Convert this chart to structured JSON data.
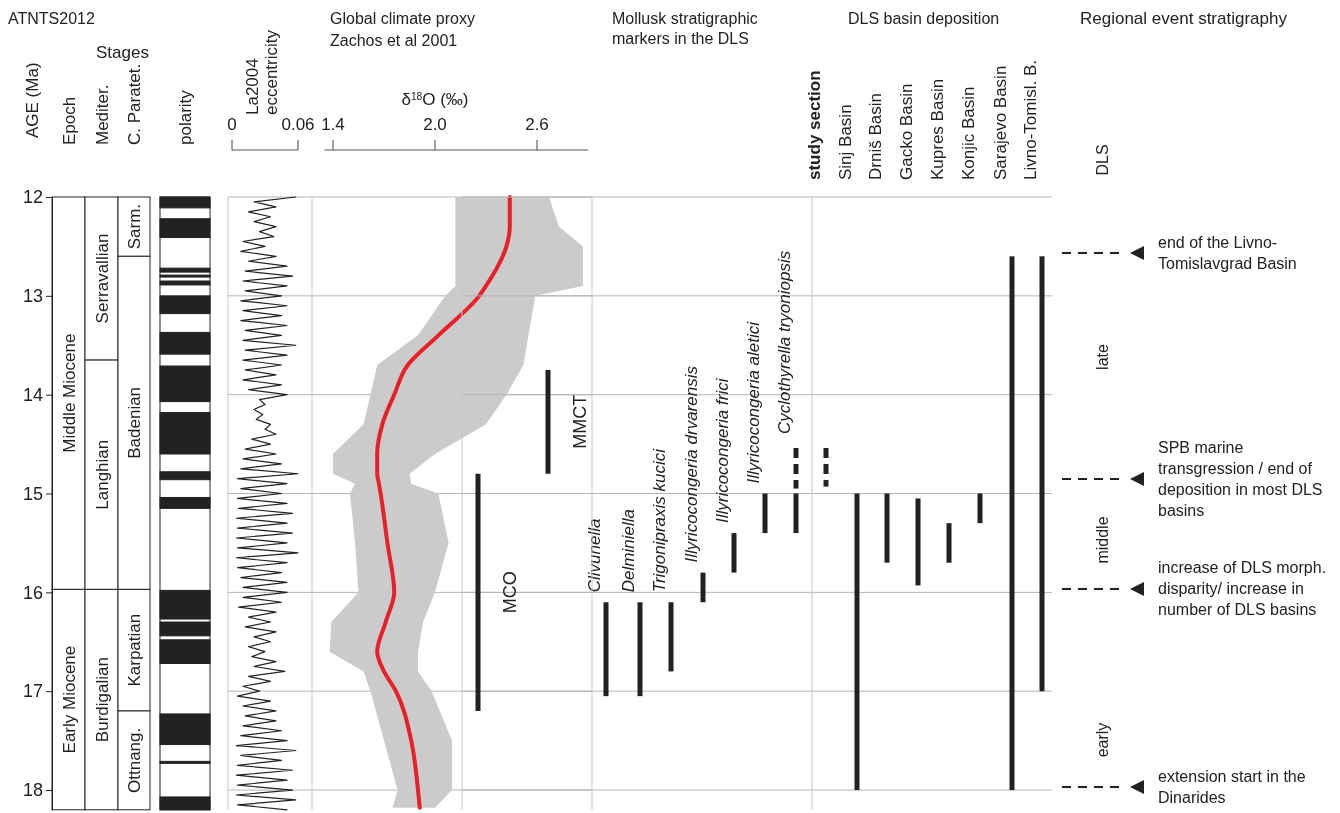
{
  "chart_data": [
    {
      "type": "bar",
      "title": "ATNTS2012",
      "ylabel": "AGE (Ma)",
      "annotations": [
        "Stages"
      ],
      "categories": [
        "Epoch",
        "Mediter.",
        "C. Paratet.",
        "polarity"
      ],
      "ylim": [
        18.2,
        12
      ],
      "yticks": [
        12,
        13,
        14,
        15,
        16,
        17,
        18
      ],
      "series": [
        {
          "color": "#ffffff",
          "base": [
            12,
            12,
            12,
            null
          ],
          "values": [
            3.97,
            1.65,
            0.6,
            null
          ],
          "value_labels": [
            "Middle Miocene",
            "Serravallian",
            "Sarm.",
            null
          ]
        },
        {
          "color": "#ffffff",
          "base": [
            15.97,
            13.65,
            12.6,
            null
          ],
          "values": [
            2.23,
            2.32,
            3.37,
            null
          ],
          "value_labels": [
            "Early Miocene",
            "Langhian",
            "Badenian",
            null
          ]
        },
        {
          "color": "#ffffff",
          "base": [
            null,
            15.97,
            15.97,
            null
          ],
          "values": [
            null,
            2.23,
            1.23,
            null
          ],
          "value_labels": [
            null,
            "Burdigalian",
            "Karpatian",
            null
          ]
        },
        {
          "color": "#ffffff",
          "base": [
            null,
            null,
            17.2,
            null
          ],
          "values": [
            null,
            null,
            1.0,
            null
          ],
          "value_labels": [
            null,
            null,
            "Ottnang.",
            null
          ]
        },
        {
          "color": "#222222",
          "base": [
            null,
            null,
            null,
            12.0
          ],
          "values": [
            null,
            null,
            null,
            0.11
          ]
        },
        {
          "color": "#222222",
          "base": [
            null,
            null,
            null,
            12.22
          ],
          "values": [
            null,
            null,
            null,
            0.19
          ]
        },
        {
          "color": "#222222",
          "base": [
            null,
            null,
            null,
            12.72
          ],
          "values": [
            null,
            null,
            null,
            0.04
          ]
        },
        {
          "color": "#222222",
          "base": [
            null,
            null,
            null,
            12.79
          ],
          "values": [
            null,
            null,
            null,
            0.02
          ]
        },
        {
          "color": "#222222",
          "base": [
            null,
            null,
            null,
            12.85
          ],
          "values": [
            null,
            null,
            null,
            0.04
          ]
        },
        {
          "color": "#222222",
          "base": [
            null,
            null,
            null,
            13.0
          ],
          "values": [
            null,
            null,
            null,
            0.18
          ]
        },
        {
          "color": "#222222",
          "base": [
            null,
            null,
            null,
            13.37
          ],
          "values": [
            null,
            null,
            null,
            0.22
          ]
        },
        {
          "color": "#222222",
          "base": [
            null,
            null,
            null,
            13.71
          ],
          "values": [
            null,
            null,
            null,
            0.36
          ]
        },
        {
          "color": "#222222",
          "base": [
            null,
            null,
            null,
            14.18
          ],
          "values": [
            null,
            null,
            null,
            0.42
          ]
        },
        {
          "color": "#222222",
          "base": [
            null,
            null,
            null,
            14.78
          ],
          "values": [
            null,
            null,
            null,
            0.08
          ]
        },
        {
          "color": "#222222",
          "base": [
            null,
            null,
            null,
            15.04
          ],
          "values": [
            null,
            null,
            null,
            0.11
          ]
        },
        {
          "color": "#222222",
          "base": [
            null,
            null,
            null,
            15.98
          ],
          "values": [
            null,
            null,
            null,
            0.29
          ]
        },
        {
          "color": "#222222",
          "base": [
            null,
            null,
            null,
            16.3
          ],
          "values": [
            null,
            null,
            null,
            0.14
          ]
        },
        {
          "color": "#222222",
          "base": [
            null,
            null,
            null,
            16.48
          ],
          "values": [
            null,
            null,
            null,
            0.24
          ]
        },
        {
          "color": "#222222",
          "base": [
            null,
            null,
            null,
            17.23
          ],
          "values": [
            null,
            null,
            null,
            0.31
          ]
        },
        {
          "color": "#222222",
          "base": [
            null,
            null,
            null,
            17.71
          ],
          "values": [
            null,
            null,
            null,
            0.02
          ]
        },
        {
          "color": "#222222",
          "base": [
            null,
            null,
            null,
            18.07
          ],
          "values": [
            null,
            null,
            null,
            0.13
          ]
        }
      ]
    },
    {
      "type": "line",
      "title": "La2004 eccentricity",
      "orientation": "horizontal",
      "color": "#222222",
      "xlim": [
        0,
        0.06
      ],
      "xticks": [
        0,
        0.06
      ],
      "ylim": [
        18.2,
        12
      ],
      "yticks": [
        12,
        13,
        14,
        15,
        16,
        17,
        18
      ],
      "grid": "y",
      "tick_labels": "x",
      "x": [
        12,
        12.05,
        12.1,
        12.15,
        12.2,
        12.25,
        12.3,
        12.35,
        12.4,
        12.45,
        12.5,
        12.55,
        12.6,
        12.65,
        12.7,
        12.75,
        12.8,
        12.85,
        12.9,
        12.95,
        13,
        13.05,
        13.1,
        13.15,
        13.2,
        13.25,
        13.3,
        13.35,
        13.4,
        13.45,
        13.5,
        13.55,
        13.6,
        13.65,
        13.7,
        13.75,
        13.8,
        13.85,
        13.9,
        13.95,
        14,
        14.05,
        14.1,
        14.15,
        14.2,
        14.25,
        14.3,
        14.35,
        14.4,
        14.45,
        14.5,
        14.55,
        14.6,
        14.65,
        14.7,
        14.75,
        14.8,
        14.85,
        14.9,
        14.95,
        15,
        15.05,
        15.1,
        15.15,
        15.2,
        15.25,
        15.3,
        15.35,
        15.4,
        15.45,
        15.5,
        15.55,
        15.6,
        15.65,
        15.7,
        15.75,
        15.8,
        15.85,
        15.9,
        15.95,
        16,
        16.05,
        16.1,
        16.15,
        16.2,
        16.25,
        16.3,
        16.35,
        16.4,
        16.45,
        16.5,
        16.55,
        16.6,
        16.65,
        16.7,
        16.75,
        16.8,
        16.85,
        16.9,
        16.95,
        17,
        17.05,
        17.1,
        17.15,
        17.2,
        17.25,
        17.3,
        17.35,
        17.4,
        17.45,
        17.5,
        17.55,
        17.6,
        17.65,
        17.7,
        17.75,
        17.8,
        17.85,
        17.9,
        17.95,
        18,
        18.05,
        18.1,
        18.15,
        18.2
      ],
      "values": [
        0.058,
        0.02,
        0.04,
        0.015,
        0.035,
        0.02,
        0.04,
        0.025,
        0.038,
        0.01,
        0.03,
        0.008,
        0.04,
        0.015,
        0.05,
        0.012,
        0.055,
        0.01,
        0.05,
        0.012,
        0.045,
        0.008,
        0.05,
        0.01,
        0.045,
        0.008,
        0.05,
        0.012,
        0.045,
        0.01,
        0.058,
        0.012,
        0.05,
        0.01,
        0.045,
        0.012,
        0.04,
        0.01,
        0.045,
        0.015,
        0.05,
        0.025,
        0.03,
        0.02,
        0.028,
        0.022,
        0.035,
        0.03,
        0.04,
        0.018,
        0.035,
        0.012,
        0.04,
        0.01,
        0.045,
        0.008,
        0.06,
        0.005,
        0.05,
        0.008,
        0.045,
        0.005,
        0.05,
        0.006,
        0.055,
        0.004,
        0.05,
        0.005,
        0.055,
        0.004,
        0.05,
        0.005,
        0.06,
        0.004,
        0.05,
        0.005,
        0.045,
        0.008,
        0.05,
        0.01,
        0.05,
        0.01,
        0.045,
        0.006,
        0.04,
        0.015,
        0.035,
        0.012,
        0.04,
        0.02,
        0.035,
        0.015,
        0.03,
        0.018,
        0.04,
        0.02,
        0.048,
        0.015,
        0.035,
        0.01,
        0.025,
        0.005,
        0.035,
        0.01,
        0.04,
        0.012,
        0.04,
        0.01,
        0.045,
        0.008,
        0.05,
        0.004,
        0.058,
        0.008,
        0.045,
        0.005,
        0.055,
        0.004,
        0.05,
        0.005,
        0.055,
        0.004,
        0.058,
        0.005,
        0.05
      ]
    },
    {
      "type": "line",
      "title": "Global climate proxy",
      "subtitle": "Zachos et al 2001",
      "xlabel": "δ$^{18}$O (‰)",
      "orientation": "horizontal",
      "xlim": [
        1.35,
        2.9
      ],
      "xticks": [
        1.4,
        {
          "value": 2,
          "label": "2.0"
        },
        2.6
      ],
      "ylim": [
        18.2,
        12
      ],
      "yticks": [
        12,
        13,
        14,
        15,
        16,
        17,
        18
      ],
      "grid": "y",
      "tick_labels": "x",
      "series": [
        {
          "color": "#e8202a",
          "x": [
            12,
            12.3,
            12.5,
            12.9,
            13,
            13.4,
            13.7,
            14,
            14.3,
            14.6,
            14.8,
            14.9,
            15,
            15.5,
            16,
            16.3,
            16.6,
            16.8,
            17,
            17.5,
            18,
            18.18
          ],
          "values": [
            2.44,
            2.44,
            2.42,
            2.3,
            2.26,
            2.02,
            1.84,
            1.76,
            1.69,
            1.66,
            1.66,
            1.67,
            1.68,
            1.72,
            1.76,
            1.71,
            1.66,
            1.7,
            1.77,
            1.86,
            1.9,
            1.91
          ],
          "lower": [
            2.12,
            2.12,
            2.12,
            2.12,
            2.06,
            1.9,
            1.66,
            1.62,
            1.58,
            1.4,
            1.4,
            1.53,
            1.5,
            1.53,
            1.55,
            1.39,
            1.38,
            1.58,
            1.62,
            1.7,
            1.78,
            1.75
          ],
          "upper": [
            2.67,
            2.73,
            2.87,
            2.87,
            2.59,
            2.55,
            2.52,
            2.42,
            2.3,
            2.0,
            1.85,
            1.86,
            2.02,
            2.08,
            2.0,
            1.93,
            1.9,
            1.9,
            1.98,
            2.1,
            2.1,
            2.0
          ]
        }
      ]
    },
    {
      "type": "bar",
      "categories": [
        "MCO",
        "MMCT"
      ],
      "ylim": [
        18.2,
        12
      ],
      "yticks": [
        12,
        13,
        14,
        15,
        16,
        17,
        18
      ],
      "grid": "y",
      "tick_labels": "x",
      "series": [
        {
          "color": "#222222",
          "base": [
            14.8,
            13.75
          ],
          "values": [
            2.4,
            1.05
          ]
        }
      ]
    },
    {
      "type": "bar",
      "title": "Mollusk stratigraphic markers in the DLS",
      "categories": [
        "Clivunella",
        "Delminiella",
        "Trigonipraxis kucici",
        "Illyricocongeria drvarensis",
        "Illyricocongeria frici",
        "Illyricocongeria aletici",
        "Cyclothyrella tryoniopsis"
      ],
      "ylim": [
        18.2,
        12
      ],
      "yticks": [
        12,
        13,
        14,
        15,
        16,
        17,
        18
      ],
      "grid": "y",
      "tick_labels": "x",
      "series": [
        {
          "color": "#222222",
          "base": [
            16.1,
            16.1,
            16.1,
            15.8,
            15.4,
            15.0,
            15.0
          ],
          "values": [
            0.95,
            0.95,
            0.7,
            0.3,
            0.4,
            0.4,
            0.4
          ]
        },
        {
          "color": "#222222",
          "line_style": "dashed",
          "base": [
            null,
            null,
            null,
            null,
            null,
            null,
            14.5
          ],
          "values": [
            null,
            null,
            null,
            null,
            null,
            null,
            0.45
          ]
        }
      ]
    },
    {
      "type": "bar",
      "title": "DLS basin deposition",
      "categories": [
        "study section",
        "Sinj Basin",
        "Drniš Basin",
        "Gacko Basin",
        "Kupres Basin",
        "Konjic Basin",
        "Sarajevo Basin",
        "Livno-Tomisl. B."
      ],
      "ylim": [
        18.2,
        12
      ],
      "yticks": [
        12,
        13,
        14,
        15,
        16,
        17,
        18
      ],
      "grid": "y",
      "tick_labels": "x",
      "series": [
        {
          "color": "#222222",
          "base": [
            null,
            15.0,
            15.0,
            15.05,
            15.3,
            15.0,
            12.6,
            12.6
          ],
          "values": [
            null,
            3.0,
            0.7,
            0.88,
            0.4,
            0.3,
            5.4,
            4.4
          ]
        },
        {
          "color": "#222222",
          "line_style": "dashed",
          "base": [
            14.5,
            null,
            null,
            null,
            null,
            null,
            null,
            null
          ],
          "values": [
            0.43,
            null,
            null,
            null,
            null,
            null,
            null,
            null
          ]
        }
      ],
      "annotations": [
        "Regional event stratigraphy",
        "end of the Livno-Tomislavgrad Basin",
        "SPB marine transgression / end of deposition in most DLS basins",
        "increase of DLS morph. disparity/ increase in number of DLS basins",
        "extension start in the Dinarides",
        "DLS",
        "late",
        "middle",
        "early"
      ]
    }
  ]
}
